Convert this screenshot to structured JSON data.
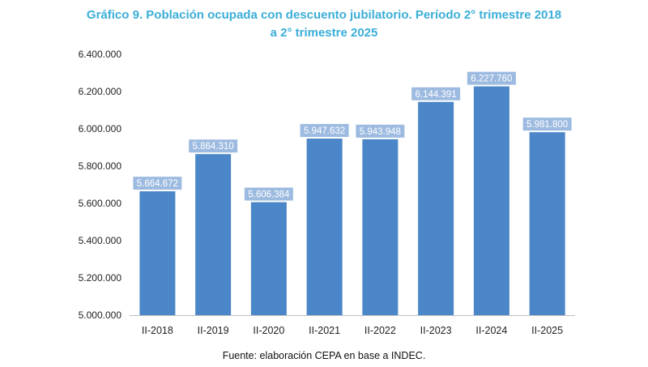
{
  "chart_data": {
    "type": "bar",
    "title_lines": [
      "Gráfico 9. Población ocupada con descuento jubilatorio. Período 2° trimestre 2018",
      "a 2° trimestre 2025"
    ],
    "categories": [
      "II-2018",
      "II-2019",
      "II-2020",
      "II-2021",
      "II-2022",
      "II-2023",
      "II-2024",
      "II-2025"
    ],
    "values": [
      5664672,
      5864310,
      5606384,
      5947632,
      5943948,
      6144391,
      6227760,
      5981800
    ],
    "data_labels": [
      "5.664.672",
      "5.864.310",
      "5.606.384",
      "5.947.632",
      "5.943.948",
      "6.144.391",
      "6.227.760",
      "5.981.800"
    ],
    "yticks": [
      5000000,
      5200000,
      5400000,
      5600000,
      5800000,
      6000000,
      6200000,
      6400000
    ],
    "ytick_labels": [
      "5.000.000",
      "5.200.000",
      "5.400.000",
      "5.600.000",
      "5.800.000",
      "6.000.000",
      "6.200.000",
      "6.400.000"
    ],
    "ylim": [
      5000000,
      6400000
    ],
    "xlabel": "",
    "ylabel": "",
    "grid": false,
    "legend": "none",
    "source": "Fuente: elaboración CEPA en base a INDEC."
  },
  "colors": {
    "bar": "#4a86c8",
    "label_bg": "#9dbbe0",
    "label_text": "#ffffff",
    "title": "#3aaed8",
    "axis": "#bfbfbf"
  }
}
